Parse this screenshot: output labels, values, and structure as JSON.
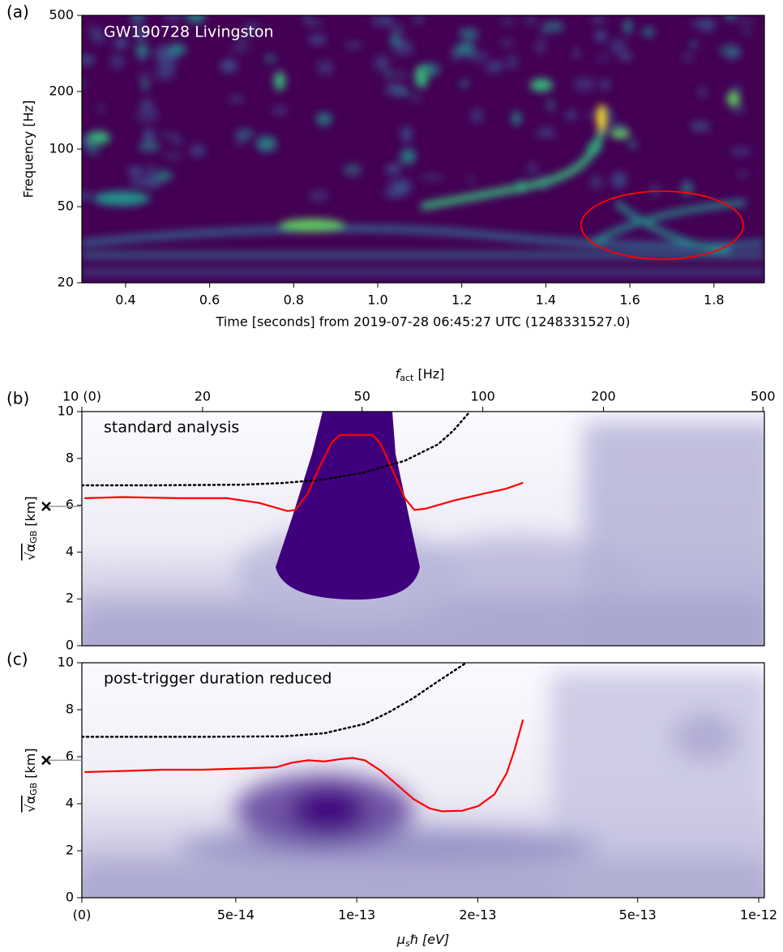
{
  "chart_data": [
    {
      "type": "heatmap",
      "panel_label": "(a)",
      "title": "GW190728 Livingston",
      "xlabel": "Time [seconds] from 2019-07-28 06:45:27 UTC (1248331527.0)",
      "ylabel": "Frequency [Hz]",
      "xlim": [
        0.296,
        1.92
      ],
      "xticks": [
        0.4,
        0.6,
        0.8,
        {
          "value": 1,
          "label": "1.0"
        },
        1.2,
        1.4,
        1.6,
        1.8
      ],
      "yscale": "log",
      "ylim": [
        20,
        500
      ],
      "yticks": [
        20,
        50,
        100,
        200,
        500
      ],
      "colormap": "viridis"
    },
    {
      "type": "line",
      "panel_label": "(b)",
      "text": "standard analysis",
      "xscale": "log",
      "xaxis_position": "top",
      "xlabel": {
        "symbol": "f",
        "subscript": "act",
        "unit": " [Hz]"
      },
      "xlim": [
        10,
        504
      ],
      "xticks": [
        {
          "value": 10,
          "label": "10 (0)"
        },
        20,
        50,
        100,
        200,
        500
      ],
      "ylabel": {
        "symbol": "√α",
        "subscript": "GB",
        "unit": " [km]"
      },
      "ylim": [
        0,
        10
      ],
      "yticks": [
        0,
        2,
        4,
        6,
        8,
        10
      ],
      "series": [
        {
          "color": "#ff0000",
          "style": "solid",
          "x": [
            10.19,
            12.56,
            17.4,
            23.0,
            27.7,
            32.6,
            34.1,
            36.6,
            39.3,
            42.1,
            44.1,
            53.2,
            55.7,
            59.6,
            63.9,
            67.5,
            71.9,
            84.6,
            101,
            114,
            125.6
          ],
          "values": [
            6.3,
            6.35,
            6.3,
            6.3,
            6.1,
            5.75,
            5.8,
            6.5,
            7.7,
            8.7,
            9.0,
            9.0,
            8.6,
            7.5,
            6.3,
            5.8,
            5.85,
            6.2,
            6.5,
            6.7,
            6.95
          ]
        },
        {
          "color": "#000000",
          "style": "dotted",
          "x": [
            10,
            15.2,
            25.3,
            31.8,
            40.2,
            50.6,
            63.9,
            77.3,
            84.6,
            92.9
          ],
          "values": [
            6.85,
            6.85,
            6.88,
            6.95,
            7.1,
            7.4,
            7.9,
            8.6,
            9.2,
            10.0
          ]
        }
      ],
      "cross_y": 5.95
    },
    {
      "type": "line",
      "panel_label": "(c)",
      "text": "post-trigger duration reduced",
      "xscale": "log",
      "xaxis_position": "bottom",
      "xlabel": {
        "symbol": "μ",
        "subscript": "s",
        "unit": "ℏ [eV]"
      },
      "xlim": [
        2.07e-14,
        1.033e-12
      ],
      "xticks": [
        {
          "value": 2.07e-14,
          "label": "(0)"
        },
        5e-14,
        1e-13,
        2e-13,
        5e-13,
        1e-12
      ],
      "ylabel": {
        "symbol": "√α",
        "subscript": "GB",
        "unit": " [km]"
      },
      "ylim": [
        0,
        10
      ],
      "yticks": [
        0,
        2,
        4,
        6,
        8,
        10
      ],
      "series": [
        {
          "color": "#ff0000",
          "style": "solid",
          "x": [
            2.11e-14,
            2.72e-14,
            3.28e-14,
            4.14e-14,
            5.22e-14,
            6.29e-14,
            6.9e-14,
            7.57e-14,
            8.31e-14,
            9.11e-14,
            9.77e-14,
            1.047e-13,
            1.149e-13,
            1.261e-13,
            1.384e-13,
            1.519e-13,
            1.628e-13,
            1.828e-13,
            2.006e-13,
            2.2e-13,
            2.36e-13,
            2.47e-13,
            2.59e-13
          ],
          "values": [
            5.35,
            5.4,
            5.45,
            5.45,
            5.5,
            5.55,
            5.75,
            5.85,
            5.8,
            5.9,
            5.95,
            5.85,
            5.4,
            4.8,
            4.2,
            3.8,
            3.68,
            3.7,
            3.9,
            4.4,
            5.3,
            6.3,
            7.55
          ]
        },
        {
          "color": "#000000",
          "style": "dotted",
          "x": [
            2.07e-14,
            4.14e-14,
            6.59e-14,
            8.31e-14,
            1.047e-13,
            1.204e-13,
            1.384e-13,
            1.59e-13,
            1.872e-13
          ],
          "values": [
            6.85,
            6.85,
            6.87,
            7.0,
            7.4,
            7.9,
            8.5,
            9.2,
            10.0
          ]
        }
      ],
      "cross_y": 5.85
    }
  ]
}
